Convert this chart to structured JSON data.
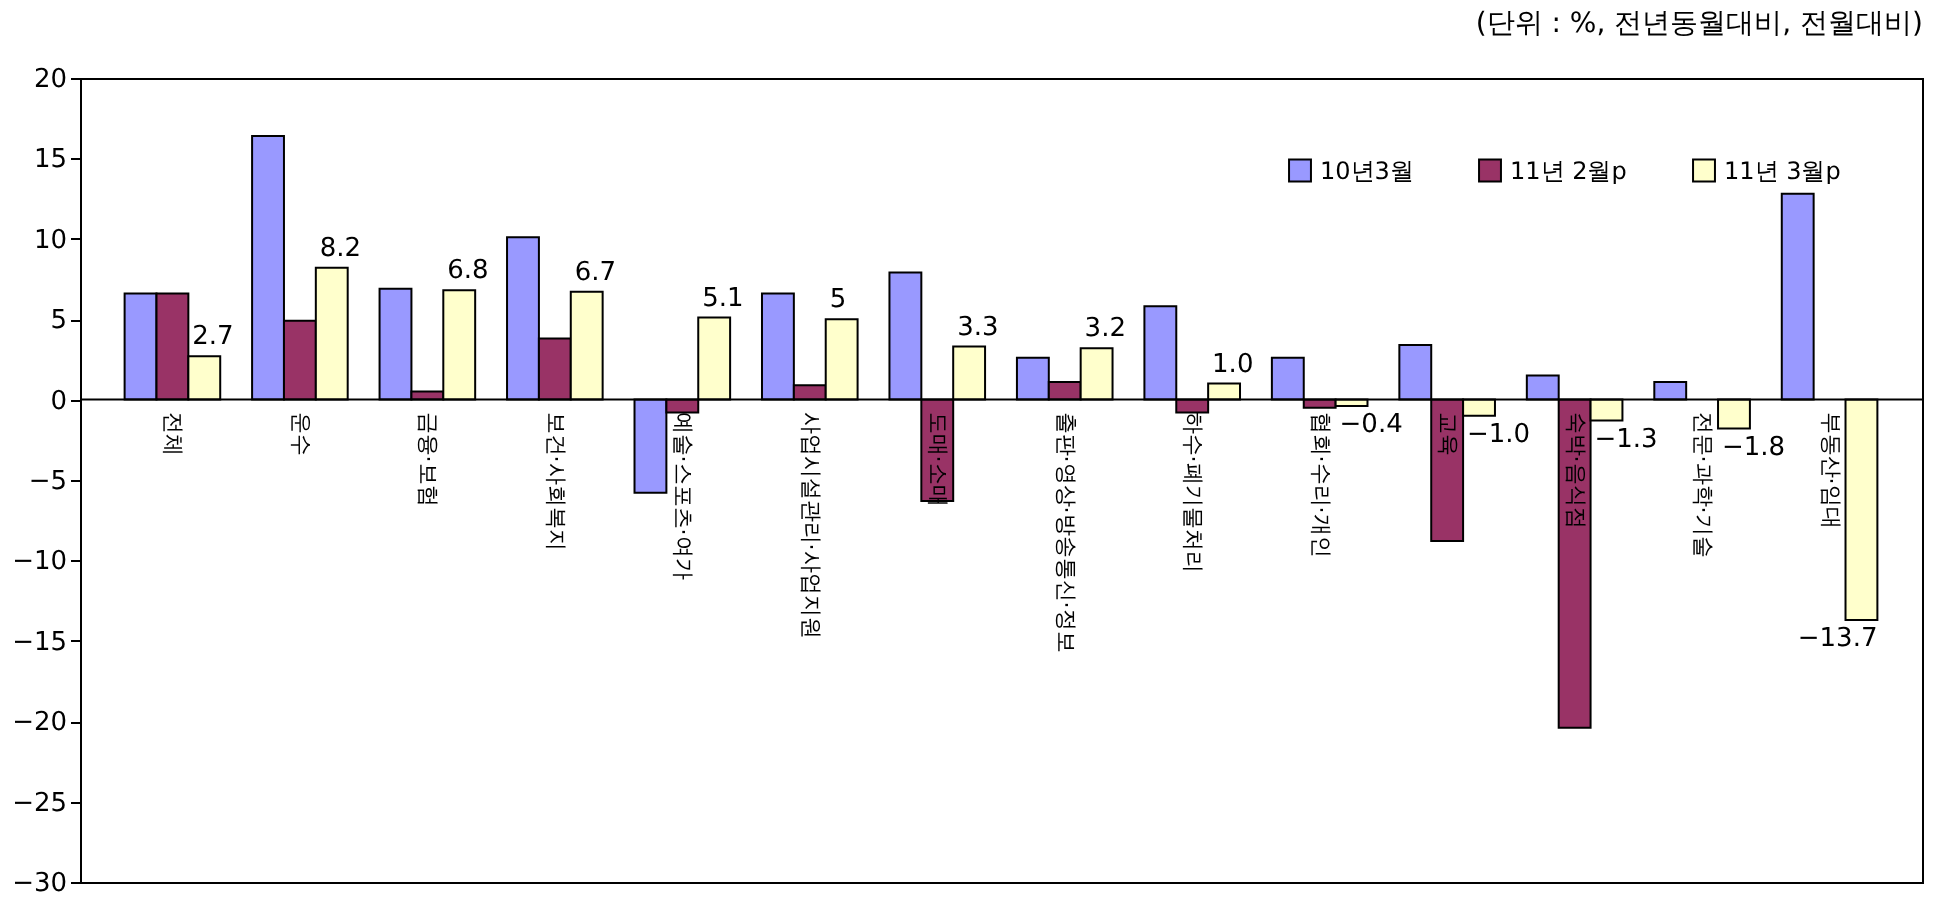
{
  "chart_data": {
    "type": "bar",
    "annotations": [
      "(단위 : %, 전년동월대비, 전월대비)"
    ],
    "categories": [
      "전체",
      "운수",
      "금융·보험",
      "보건·사회복지",
      "예술·스포츠·여가",
      "사업시설관리·사업지원",
      "도매·소매",
      "출판·영상·방송통신·정보",
      "하수·폐기물처리",
      "협회·수리·개인",
      "교육",
      "숙박·음식점",
      "전문·과학·기술",
      "부동산·임대"
    ],
    "series": [
      {
        "name": "10년3월",
        "color": "#9999ff",
        "values": [
          6.6,
          16.4,
          6.9,
          10.1,
          -5.8,
          6.6,
          7.9,
          2.6,
          5.8,
          2.6,
          3.4,
          1.5,
          1.1,
          12.8
        ]
      },
      {
        "name": "11년 2월p",
        "color": "#993366",
        "values": [
          6.6,
          4.9,
          0.5,
          3.8,
          -0.8,
          0.9,
          -6.3,
          1.1,
          -0.8,
          -0.5,
          -8.8,
          -20.4,
          null,
          null
        ]
      },
      {
        "name": "11년 3월p",
        "color": "#ffffcc",
        "values": [
          2.7,
          8.2,
          6.8,
          6.7,
          5.1,
          5,
          3.3,
          3.2,
          1.0,
          -0.4,
          -1.0,
          -1.3,
          -1.8,
          -13.7
        ],
        "value_labels": [
          "2.7",
          "8.2",
          "6.8",
          "6.7",
          "5.1",
          "5",
          "3.3",
          "3.2",
          "1.0",
          "−0.4",
          "−1.0",
          "−1.3",
          "−1.8",
          "−13.7"
        ]
      }
    ],
    "ylim": [
      -30,
      20
    ],
    "yticks": [
      -30,
      -25,
      -20,
      -15,
      -10,
      -5,
      0,
      5,
      10,
      15,
      20
    ],
    "grid": false,
    "legend": "top right"
  }
}
